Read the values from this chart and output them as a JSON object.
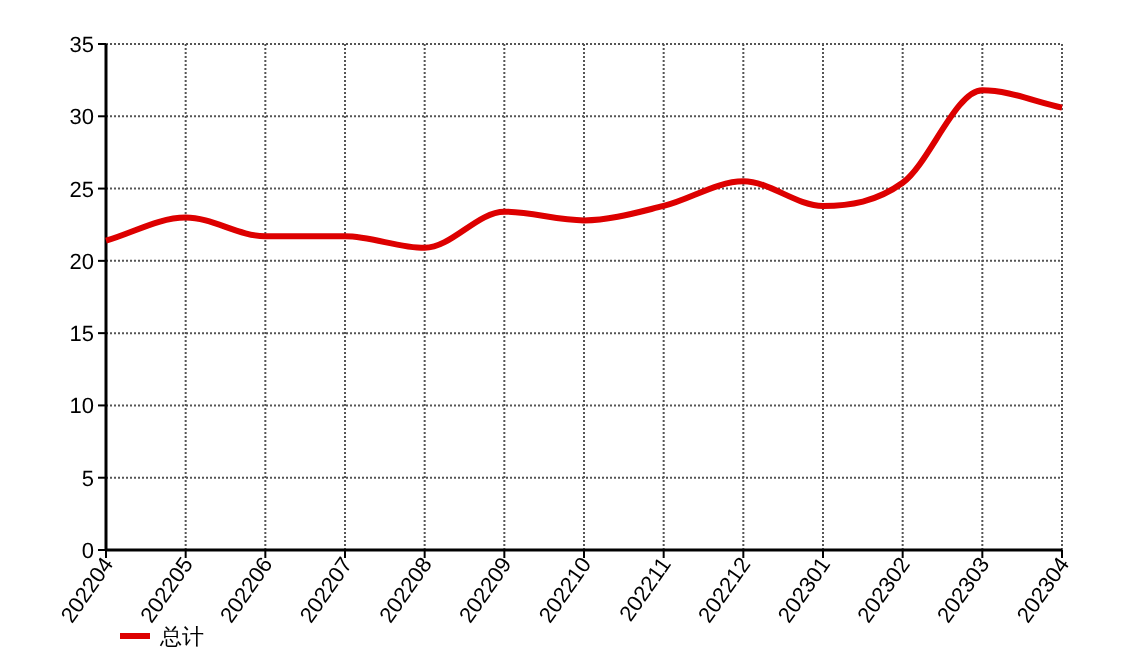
{
  "chart_data": {
    "type": "line",
    "categories": [
      "202204",
      "202205",
      "202206",
      "202207",
      "202208",
      "202209",
      "202210",
      "202211",
      "202212",
      "202301",
      "202302",
      "202303",
      "202304"
    ],
    "series": [
      {
        "name": "总计",
        "color": "#dd0000",
        "values": [
          21.4,
          23.0,
          21.7,
          21.7,
          20.9,
          23.4,
          22.8,
          23.8,
          25.5,
          23.8,
          25.4,
          31.8,
          30.6
        ]
      }
    ],
    "ylim": [
      0,
      35
    ],
    "yticks": [
      0,
      5,
      10,
      15,
      20,
      25,
      30,
      35
    ],
    "grid": true,
    "legend": "bottom left",
    "marker": "none"
  }
}
